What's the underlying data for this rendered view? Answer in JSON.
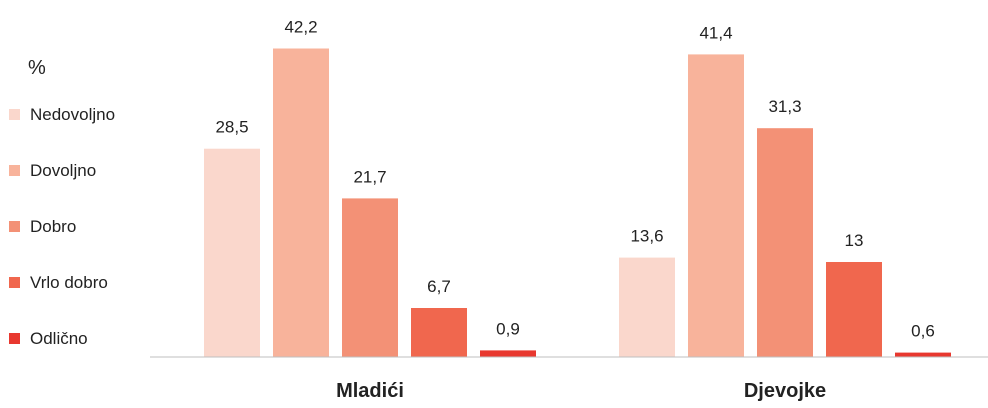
{
  "chart_data": {
    "type": "bar",
    "ylabel": "%",
    "categories": [
      "Mladići",
      "Djevojke"
    ],
    "series": [
      {
        "name": "Nedovoljno",
        "color": "#FAD7CC",
        "values": [
          28.5,
          13.6
        ],
        "labels": [
          "28,5",
          "13,6"
        ]
      },
      {
        "name": "Dovoljno",
        "color": "#F8B39B",
        "values": [
          42.2,
          41.4
        ],
        "labels": [
          "42,2",
          "41,4"
        ]
      },
      {
        "name": "Dobro",
        "color": "#F39176",
        "values": [
          21.7,
          31.3
        ],
        "labels": [
          "21,7",
          "31,3"
        ]
      },
      {
        "name": "Vrlo dobro",
        "color": "#F0674E",
        "values": [
          6.7,
          13.0
        ],
        "labels": [
          "6,7",
          "13"
        ]
      },
      {
        "name": "Odlično",
        "color": "#E8382F",
        "values": [
          0.9,
          0.6
        ],
        "labels": [
          "0,9",
          "0,6"
        ]
      }
    ],
    "ylim": [
      0,
      45
    ],
    "grid": false,
    "legend": "left",
    "axis_color": "#BFBFBF"
  }
}
